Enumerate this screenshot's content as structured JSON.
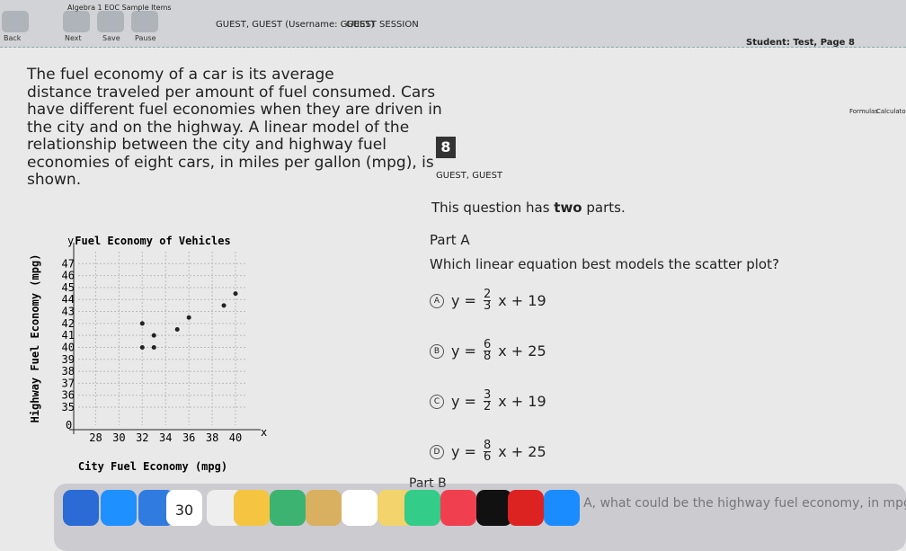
{
  "toolbar": {
    "buttons": [
      "Back",
      "Next",
      "Save",
      "Pause"
    ],
    "breadcrumb": "Algebra 1 EOC Sample Items",
    "user": "GUEST, GUEST (Username: GUEST)",
    "session": "GUEST SESSION",
    "student": "Student: Test, Page 8",
    "tools": [
      "Formulas",
      "Calculator"
    ]
  },
  "passage": {
    "lines": [
      "The fuel economy of a car is its average",
      "distance traveled per amount of fuel consumed. Cars",
      "have different fuel economies when they are driven in",
      "the city and on the highway. A linear model of the",
      "relationship between the city and highway fuel",
      "economies of eight cars, in miles per gallon (mpg), is",
      "shown."
    ]
  },
  "chart": {
    "type": "scatter",
    "title": "Fuel Economy of Vehicles",
    "x_label": "City Fuel Economy (mpg)",
    "y_label": "Highway Fuel Economy (mpg)",
    "x_axis_letter": "x",
    "y_axis_letter": "y",
    "origin_label": 0,
    "x": [
      32,
      32,
      33,
      33,
      35,
      36,
      39,
      40
    ],
    "y": [
      42,
      40,
      41,
      40,
      41.5,
      42.5,
      43.5,
      44.5
    ],
    "xlim": [
      26.5,
      41
    ],
    "ylim": [
      33.5,
      48
    ],
    "xticks": [
      28,
      30,
      32,
      34,
      36,
      38,
      40
    ],
    "yticks": [
      35,
      36,
      37,
      38,
      39,
      40,
      41,
      42,
      43,
      44,
      45,
      46,
      47
    ],
    "grid": true
  },
  "question": {
    "number": "8",
    "user": "GUEST, GUEST",
    "intro_prefix": "This question has ",
    "intro_bold": "two",
    "intro_suffix": " parts.",
    "part_a": "Part A",
    "prompt": "Which linear equation best models the scatter plot?",
    "options": [
      {
        "letter": "A",
        "prefix": "y =",
        "numerator": "2",
        "denominator": "3",
        "suffix": "x + 19"
      },
      {
        "letter": "B",
        "prefix": "y =",
        "numerator": "6",
        "denominator": "8",
        "suffix": "x + 25"
      },
      {
        "letter": "C",
        "prefix": "y =",
        "numerator": "3",
        "denominator": "2",
        "suffix": "x + 19"
      },
      {
        "letter": "D",
        "prefix": "y =",
        "numerator": "8",
        "denominator": "6",
        "suffix": "x + 25"
      }
    ],
    "part_b": "Part B",
    "part_b_text": "Based on the model in Part A, what could be the highway fuel economy, in mpg"
  },
  "dock": {
    "calendar_day": "30"
  }
}
